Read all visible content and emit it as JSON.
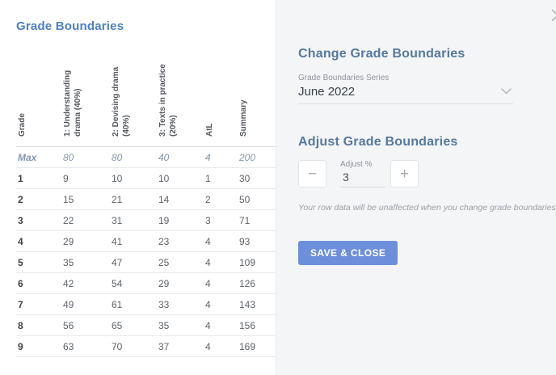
{
  "left": {
    "title": "Grade Boundaries",
    "table": {
      "columns": [
        "Grade",
        "1: Understanding drama (40%)",
        "2: Devising drama (40%)",
        "3: Texts in practice (20%)",
        "AtL",
        "Summary"
      ],
      "max_row": {
        "label": "Max",
        "values": [
          "80",
          "80",
          "40",
          "4",
          "200"
        ]
      },
      "rows": [
        {
          "grade": "1",
          "values": [
            "9",
            "10",
            "10",
            "1",
            "30"
          ]
        },
        {
          "grade": "2",
          "values": [
            "15",
            "21",
            "14",
            "2",
            "50"
          ]
        },
        {
          "grade": "3",
          "values": [
            "22",
            "31",
            "19",
            "3",
            "71"
          ]
        },
        {
          "grade": "4",
          "values": [
            "29",
            "41",
            "23",
            "4",
            "93"
          ]
        },
        {
          "grade": "5",
          "values": [
            "35",
            "47",
            "25",
            "4",
            "109"
          ]
        },
        {
          "grade": "6",
          "values": [
            "42",
            "54",
            "29",
            "4",
            "126"
          ]
        },
        {
          "grade": "7",
          "values": [
            "49",
            "61",
            "33",
            "4",
            "143"
          ]
        },
        {
          "grade": "8",
          "values": [
            "56",
            "65",
            "35",
            "4",
            "156"
          ]
        },
        {
          "grade": "9",
          "values": [
            "63",
            "70",
            "37",
            "4",
            "169"
          ]
        }
      ]
    }
  },
  "panel": {
    "heading": "Change Grade Boundaries",
    "series": {
      "label": "Grade Boundaries Series",
      "value": "June 2022"
    },
    "adjust": {
      "heading": "Adjust Grade Boundaries",
      "label": "Adjust %",
      "value": "3",
      "minus_icon": "−",
      "plus_icon": "+"
    },
    "note": "Your row data will be unaffected when you change grade boundaries",
    "save_button_label": "SAVE & CLOSE"
  },
  "colors": {
    "accent_blue": "#6d8fdb",
    "title_blue": "#4d80c4",
    "panel_heading": "#55799d",
    "max_row": "#8296ad",
    "panel_bg": "#f4f5f7"
  }
}
